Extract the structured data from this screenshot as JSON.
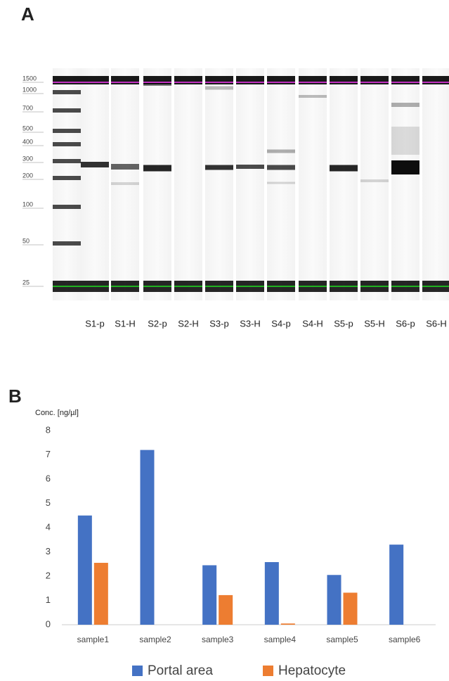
{
  "panel_a": {
    "label": "A",
    "ladder_labels": [
      1500,
      1000,
      700,
      500,
      400,
      300,
      200,
      100,
      50,
      25
    ],
    "lanes": [
      "S1-p",
      "S1-H",
      "S2-p",
      "S2-H",
      "S3-p",
      "S3-H",
      "S4-p",
      "S4-H",
      "S5-p",
      "S5-H",
      "S6-p",
      "S6-H"
    ]
  },
  "panel_b_label": "B",
  "chart_data": {
    "type": "bar",
    "y_label": "Conc. [ng/µl]",
    "categories": [
      "sample1",
      "sample2",
      "sample3",
      "sample4",
      "sample5",
      "sample6"
    ],
    "series": [
      {
        "name": "Portal area",
        "color": "#4472c4",
        "values": [
          4.5,
          7.2,
          2.45,
          2.58,
          2.05,
          3.3
        ]
      },
      {
        "name": "Hepatocyte",
        "color": "#ed7d31",
        "values": [
          2.55,
          0,
          1.22,
          0.05,
          1.32,
          0
        ]
      }
    ],
    "ylim": [
      0,
      8
    ],
    "yticks": [
      0,
      1,
      2,
      3,
      4,
      5,
      6,
      7,
      8
    ],
    "grid": false,
    "legend": "bottom"
  }
}
